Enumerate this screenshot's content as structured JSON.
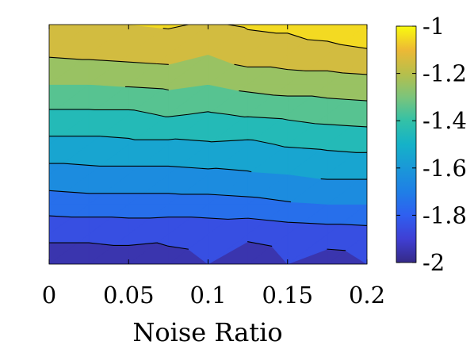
{
  "chart_data": {
    "type": "contour",
    "title": "",
    "xlabel": "Noise Ratio",
    "ylabel": "",
    "x": [
      0,
      0.025,
      0.05,
      0.075,
      0.1,
      0.125,
      0.15,
      0.175,
      0.2
    ],
    "xlim": [
      0,
      0.2
    ],
    "x_ticks": [
      0,
      0.05,
      0.1,
      0.15,
      0.2
    ],
    "x_tick_labels": [
      "0",
      "0.05",
      "0.1",
      "0.15",
      "0.2"
    ],
    "y_ticks_shown": false,
    "z": [
      [
        -1.95,
        -1.95,
        -1.95,
        -1.93,
        -1.9,
        -1.96,
        -1.9,
        -1.95,
        -1.9
      ],
      [
        -1.88,
        -1.88,
        -1.87,
        -1.88,
        -1.87,
        -1.88,
        -1.86,
        -1.85,
        -1.84
      ],
      [
        -1.75,
        -1.74,
        -1.74,
        -1.74,
        -1.74,
        -1.73,
        -1.71,
        -1.7,
        -1.7
      ],
      [
        -1.64,
        -1.63,
        -1.63,
        -1.63,
        -1.62,
        -1.61,
        -1.6,
        -1.58,
        -1.58
      ],
      [
        -1.53,
        -1.53,
        -1.52,
        -1.52,
        -1.51,
        -1.52,
        -1.49,
        -1.48,
        -1.47
      ],
      [
        -1.42,
        -1.42,
        -1.42,
        -1.39,
        -1.41,
        -1.39,
        -1.38,
        -1.36,
        -1.35
      ],
      [
        -1.3,
        -1.3,
        -1.29,
        -1.28,
        -1.3,
        -1.27,
        -1.25,
        -1.25,
        -1.24
      ],
      [
        -1.19,
        -1.18,
        -1.17,
        -1.16,
        -1.2,
        -1.15,
        -1.15,
        -1.14,
        -1.12
      ],
      [
        -1.1,
        -1.1,
        -1.1,
        -1.09,
        -1.11,
        -1.09,
        -1.08,
        -1.05,
        -1.02
      ]
    ],
    "contour_levels": [
      -2,
      -1.9,
      -1.8,
      -1.7,
      -1.6,
      -1.5,
      -1.4,
      -1.3,
      -1.2,
      -1.1,
      -1
    ],
    "colorbar": {
      "limits": [
        -2,
        -1
      ],
      "ticks": [
        -2,
        -1.8,
        -1.6,
        -1.4,
        -1.2,
        -1
      ],
      "tick_labels": [
        "-2",
        "-1.8",
        "-1.6",
        "-1.4",
        "-1.2",
        "-1"
      ],
      "colormap": "parula"
    },
    "grid": false
  }
}
